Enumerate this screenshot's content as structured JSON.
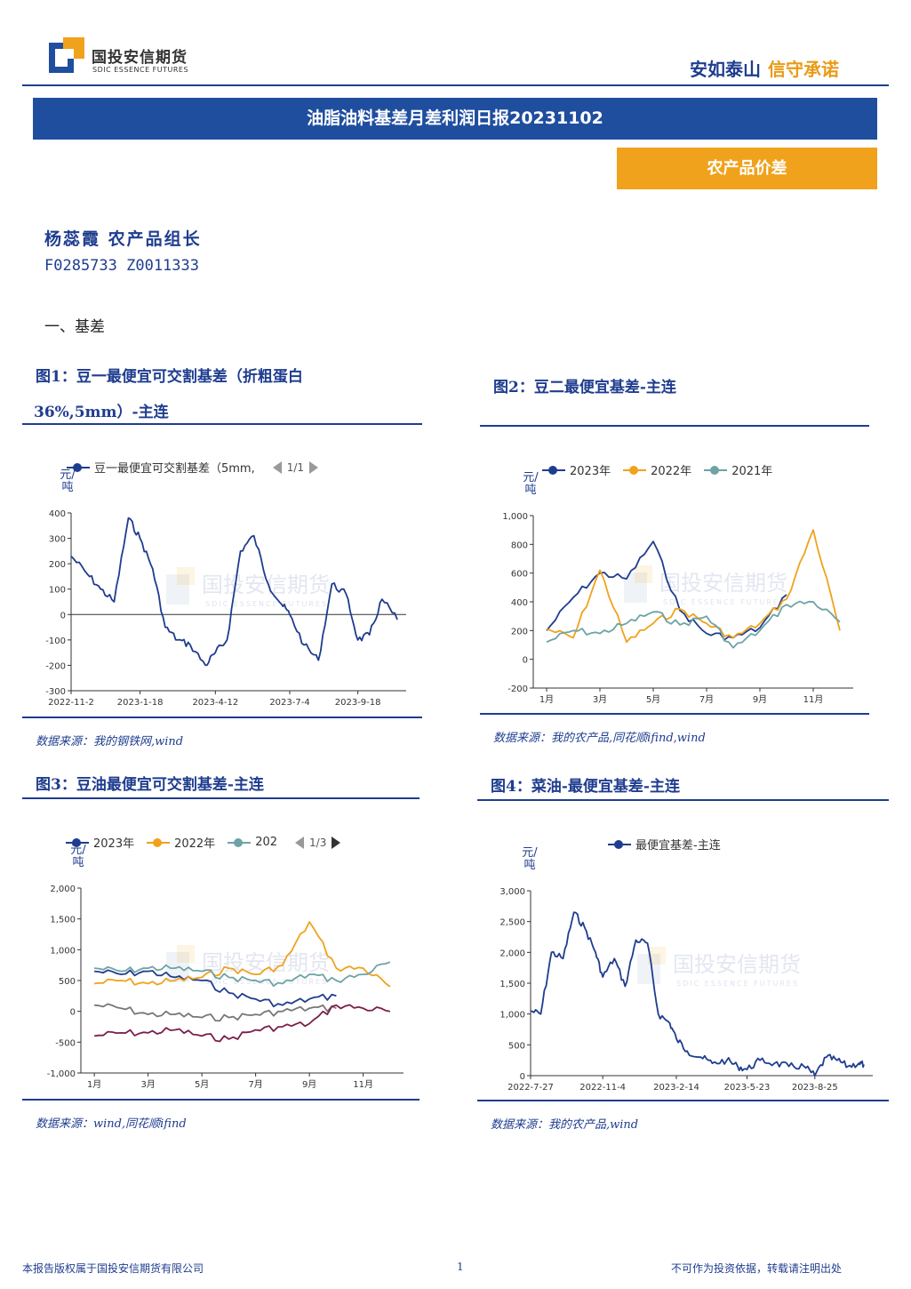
{
  "header": {
    "logo_cn": "国投安信期货",
    "logo_en": "SDIC ESSENCE FUTURES",
    "slogan_a": "安如泰山",
    "slogan_b": "信守承诺"
  },
  "report": {
    "title": "油脂油料基差月差利润日报20231102",
    "tag": "农产品价差",
    "author": "杨蕊霞 农产品组长",
    "codes": "F0285733 Z0011333",
    "section": "一、基差"
  },
  "figures": [
    {
      "title_l1": "图1：豆一最便宜可交割基差（折粗蛋白",
      "title_l2": "36%,5mm）-主连",
      "legend": "豆一最便宜可交割基差（5mm,",
      "pager": "1/1",
      "unit": "元/吨",
      "source": "数据来源：我的钢铁网,wind"
    },
    {
      "title": "图2：豆二最便宜基差-主连",
      "legend": [
        "2023年",
        "2022年",
        "2021年"
      ],
      "unit": "元/吨",
      "source": "数据来源：我的农产品,同花顺ifind,wind"
    },
    {
      "title": "图3：豆油最便宜可交割基差-主连",
      "legend": [
        "2023年",
        "2022年",
        "202"
      ],
      "pager": "1/3",
      "unit": "元/吨",
      "source": "数据来源：wind,同花顺ifind"
    },
    {
      "title": "图4：菜油-最便宜基差-主连",
      "legend": "最便宜基差-主连",
      "unit": "元/吨",
      "source": "数据来源：我的农产品,wind"
    }
  ],
  "watermark": {
    "cn": "国投安信期货",
    "en": "SDIC ESSENCE FUTURES"
  },
  "colors": {
    "navy": "#1f3d8f",
    "orange": "#f0a21c",
    "teal": "#6ea3a6",
    "gray": "#777777",
    "maroon": "#7a1f4a"
  },
  "chart_data": [
    {
      "type": "line",
      "title": "图1：豆一最便宜可交割基差（折粗蛋白36%,5mm）-主连",
      "ylabel": "元/吨",
      "ylim": [
        -300,
        400
      ],
      "yticks": [
        -300,
        -200,
        -100,
        0,
        100,
        200,
        300,
        400
      ],
      "xticks": [
        "2022-11-2",
        "2023-1-18",
        "2023-4-12",
        "2023-7-4",
        "2023-9-18"
      ],
      "series": [
        {
          "name": "豆一最便宜可交割基差（5mm,",
          "x": [
            "2022-11-02",
            "2022-11-20",
            "2022-12-05",
            "2022-12-20",
            "2023-01-05",
            "2023-01-18",
            "2023-02-01",
            "2023-02-15",
            "2023-03-01",
            "2023-03-15",
            "2023-04-01",
            "2023-04-12",
            "2023-04-25",
            "2023-05-10",
            "2023-05-25",
            "2023-06-10",
            "2023-06-25",
            "2023-07-04",
            "2023-07-20",
            "2023-08-05",
            "2023-08-20",
            "2023-09-05",
            "2023-09-18",
            "2023-10-01",
            "2023-10-15",
            "2023-11-01"
          ],
          "values": [
            230,
            160,
            100,
            50,
            380,
            300,
            180,
            -50,
            -100,
            -120,
            -200,
            -150,
            -100,
            250,
            310,
            120,
            40,
            0,
            -120,
            -180,
            120,
            80,
            -100,
            -80,
            60,
            -20
          ]
        }
      ]
    },
    {
      "type": "line",
      "title": "图2：豆二最便宜基差-主连",
      "ylabel": "元/吨",
      "ylim": [
        -200,
        1000
      ],
      "yticks": [
        -200,
        0,
        200,
        400,
        600,
        800,
        1000
      ],
      "categories": [
        "1月",
        "2月",
        "3月",
        "4月",
        "5月",
        "6月",
        "7月",
        "8月",
        "9月",
        "10月",
        "11月",
        "12月"
      ],
      "xticks": [
        "1月",
        "3月",
        "5月",
        "7月",
        "9月",
        "11月"
      ],
      "series": [
        {
          "name": "2023年",
          "values": [
            200,
            430,
            600,
            560,
            820,
            340,
            180,
            150,
            220,
            450,
            null,
            null
          ]
        },
        {
          "name": "2022年",
          "values": [
            210,
            150,
            620,
            120,
            250,
            350,
            250,
            150,
            250,
            420,
            900,
            200
          ]
        },
        {
          "name": "2021年",
          "values": [
            120,
            200,
            180,
            250,
            330,
            240,
            300,
            80,
            200,
            380,
            400,
            260
          ]
        }
      ]
    },
    {
      "type": "line",
      "title": "图3：豆油最便宜可交割基差-主连",
      "ylabel": "元/吨",
      "ylim": [
        -1000,
        2000
      ],
      "yticks": [
        -1000,
        -500,
        0,
        500,
        1000,
        1500,
        2000
      ],
      "categories": [
        "1月",
        "2月",
        "3月",
        "4月",
        "5月",
        "6月",
        "7月",
        "8月",
        "9月",
        "10月",
        "11月",
        "12月"
      ],
      "xticks": [
        "1月",
        "3月",
        "5月",
        "7月",
        "9月",
        "11月"
      ],
      "series": [
        {
          "name": "2023年",
          "values": [
            650,
            600,
            650,
            550,
            500,
            300,
            200,
            100,
            200,
            250,
            null,
            null
          ]
        },
        {
          "name": "2022年",
          "values": [
            450,
            500,
            450,
            500,
            550,
            700,
            600,
            750,
            1450,
            700,
            700,
            400
          ]
        },
        {
          "name": "202",
          "values": [
            700,
            650,
            700,
            700,
            650,
            550,
            500,
            450,
            600,
            500,
            600,
            800
          ]
        },
        {
          "values": [
            100,
            50,
            -50,
            -50,
            -100,
            -100,
            -50,
            0,
            50,
            50,
            null,
            null
          ]
        },
        {
          "values": [
            -400,
            -350,
            -350,
            -300,
            -400,
            -450,
            -300,
            -250,
            -200,
            100,
            50,
            0
          ]
        }
      ]
    },
    {
      "type": "line",
      "title": "图4：菜油-最便宜基差-主连",
      "ylabel": "元/吨",
      "ylim": [
        0,
        3000
      ],
      "yticks": [
        0,
        500,
        1000,
        1500,
        2000,
        2500,
        3000
      ],
      "xticks": [
        "2022-7-27",
        "2022-11-4",
        "2023-2-14",
        "2023-5-23",
        "2023-8-25"
      ],
      "series": [
        {
          "name": "最便宜基差-主连",
          "x": [
            "2022-07-27",
            "2022-08-10",
            "2022-08-25",
            "2022-09-10",
            "2022-09-25",
            "2022-10-10",
            "2022-10-25",
            "2022-11-04",
            "2022-11-20",
            "2022-12-05",
            "2022-12-20",
            "2023-01-05",
            "2023-01-20",
            "2023-02-05",
            "2023-02-14",
            "2023-03-01",
            "2023-03-20",
            "2023-04-05",
            "2023-04-25",
            "2023-05-10",
            "2023-05-23",
            "2023-06-10",
            "2023-06-30",
            "2023-07-20",
            "2023-08-10",
            "2023-08-25",
            "2023-09-10",
            "2023-09-25",
            "2023-10-10",
            "2023-10-25",
            "2023-11-01"
          ],
          "values": [
            1050,
            1000,
            2000,
            1900,
            2650,
            2400,
            2000,
            1600,
            1900,
            1450,
            2200,
            2150,
            1000,
            850,
            600,
            400,
            300,
            200,
            250,
            150,
            100,
            250,
            200,
            150,
            150,
            0,
            300,
            250,
            150,
            200,
            180
          ]
        }
      ]
    }
  ]
}
